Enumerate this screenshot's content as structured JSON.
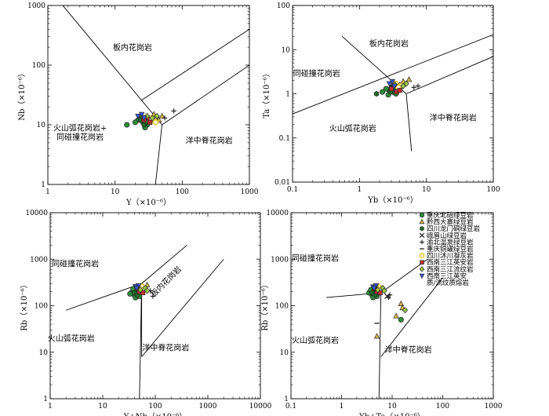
{
  "symbols": {
    "chongqing_north": {
      "shape": "circle",
      "color": "#2e8b3a"
    },
    "qianxi_dazhai": {
      "shape": "triangle",
      "color": "#d4b84a"
    },
    "sichuan_longmen": {
      "shape": "hexagon",
      "color": "#1f6e2a"
    },
    "emei": {
      "shape": "cross",
      "color": "#1a1a1a"
    },
    "yubei_wenquan": {
      "shape": "plus",
      "color": "#1a1a1a"
    },
    "chongqing_jinfo": {
      "shape": "dash",
      "color": "#1a1a1a"
    },
    "sichuan_muchuan": {
      "shape": "octagon-open",
      "color": "#e8c63a"
    },
    "southwest_ying": {
      "shape": "square",
      "color": "#c03030"
    },
    "southwest_liuwen": {
      "shape": "diamond",
      "color": "#9ec84a"
    },
    "southwest_ying_liuwen": {
      "shape": "triangle-down",
      "color": "#3b5bdb"
    }
  },
  "chart_data": [
    {
      "type": "scatter",
      "xlabel": "Y（×10⁻⁶）",
      "ylabel": "Nb（×10⁻⁶）",
      "xlog": true,
      "ylog": true,
      "xlim": [
        1,
        1000
      ],
      "ylim": [
        1,
        1000
      ],
      "xticks": [
        "1",
        "10",
        "100",
        "1000"
      ],
      "yticks": [
        "1",
        "10",
        "100",
        "1000"
      ],
      "fields": [
        "板内花岗岩",
        "火山弧花岗岩+",
        "同碰撞花岗岩",
        "洋中脊花岗岩"
      ],
      "boundaries": [
        [
          [
            1,
            2000
          ],
          [
            50,
            10
          ]
        ],
        [
          [
            50,
            10
          ],
          [
            1000,
            100
          ]
        ],
        [
          [
            25,
            26
          ],
          [
            1000,
            400
          ]
        ],
        [
          [
            50,
            10
          ],
          [
            40,
            1
          ]
        ]
      ],
      "series": [
        {
          "key": "chongqing_north",
          "points": [
            [
              26,
              11
            ],
            [
              28,
              13
            ],
            [
              22,
              12
            ],
            [
              30,
              10
            ],
            [
              25,
              13
            ],
            [
              15,
              10
            ],
            [
              35,
              12
            ],
            [
              28,
              9
            ],
            [
              20,
              11
            ],
            [
              32,
              12
            ]
          ]
        },
        {
          "key": "qianxi_dazhai",
          "points": [
            [
              40,
              13
            ],
            [
              50,
              14
            ],
            [
              45,
              12
            ],
            [
              38,
              15
            ]
          ]
        },
        {
          "key": "sichuan_longmen",
          "points": [
            [
              24,
              12
            ],
            [
              27,
              10
            ],
            [
              30,
              11
            ]
          ]
        },
        {
          "key": "emei",
          "points": [
            [
              28,
              13
            ]
          ]
        },
        {
          "key": "yubei_wenquan",
          "points": [
            [
              75,
              17
            ],
            [
              55,
              13
            ]
          ]
        },
        {
          "key": "sichuan_muchuan",
          "points": [
            [
              35,
              13
            ],
            [
              40,
              11
            ],
            [
              33,
              12
            ]
          ]
        },
        {
          "key": "southwest_ying",
          "points": [
            [
              30,
              13
            ],
            [
              33,
              11
            ],
            [
              27,
              12
            ]
          ]
        },
        {
          "key": "southwest_liuwen",
          "points": [
            [
              30,
              14
            ],
            [
              36,
              13
            ],
            [
              42,
              14
            ]
          ]
        },
        {
          "key": "southwest_ying_liuwen",
          "points": [
            [
              22,
              14
            ],
            [
              25,
              15
            ],
            [
              27,
              13
            ]
          ]
        }
      ]
    },
    {
      "type": "scatter",
      "xlabel": "Yb（×10⁻⁶）",
      "ylabel": "Ta（×10⁻⁶）",
      "xlog": true,
      "ylog": true,
      "xlim": [
        0.1,
        100
      ],
      "ylim": [
        0.01,
        100
      ],
      "xticks": [
        "0.1",
        "1",
        "10",
        "100"
      ],
      "yticks": [
        "0.01",
        "0.1",
        "1",
        "10",
        "100"
      ],
      "fields": [
        "板内花岗岩",
        "同碰撞花岗岩",
        "火山弧花岗岩",
        "洋中脊花岗岩"
      ],
      "boundaries": [
        [
          [
            0.1,
            0.35
          ],
          [
            100,
            22
          ]
        ],
        [
          [
            0.55,
            20
          ],
          [
            3,
            2
          ]
        ],
        [
          [
            3,
            2
          ],
          [
            5,
            1
          ]
        ],
        [
          [
            5,
            1
          ],
          [
            100,
            7
          ]
        ],
        [
          [
            5,
            1
          ],
          [
            6,
            0.05
          ]
        ]
      ],
      "series": [
        {
          "key": "chongqing_north",
          "points": [
            [
              2.8,
              1.2
            ],
            [
              3.2,
              1.1
            ],
            [
              2.5,
              1.3
            ],
            [
              3.5,
              1.0
            ],
            [
              2.2,
              1.1
            ],
            [
              3.0,
              1.4
            ],
            [
              2.7,
              0.95
            ],
            [
              3.8,
              1.2
            ]
          ]
        },
        {
          "key": "qianxi_dazhai",
          "points": [
            [
              4.5,
              1.9
            ],
            [
              5.5,
              2.1
            ],
            [
              4.0,
              1.6
            ]
          ]
        },
        {
          "key": "sichuan_longmen",
          "points": [
            [
              2.9,
              1.1
            ],
            [
              3.3,
              1.3
            ],
            [
              1.8,
              1.0
            ]
          ]
        },
        {
          "key": "emei",
          "points": [
            [
              3.0,
              1.5
            ]
          ]
        },
        {
          "key": "yubei_wenquan",
          "points": [
            [
              7.5,
              1.5
            ],
            [
              6.5,
              1.4
            ]
          ]
        },
        {
          "key": "sichuan_muchuan",
          "points": [
            [
              3.5,
              1.7
            ],
            [
              4.2,
              1.5
            ],
            [
              3.8,
              1.4
            ]
          ]
        },
        {
          "key": "southwest_ying",
          "points": [
            [
              3.0,
              1.3
            ],
            [
              3.6,
              1.1
            ],
            [
              4.0,
              1.2
            ]
          ]
        },
        {
          "key": "southwest_liuwen",
          "points": [
            [
              3.4,
              1.6
            ],
            [
              4.5,
              1.5
            ],
            [
              5.0,
              1.7
            ]
          ]
        },
        {
          "key": "southwest_ying_liuwen",
          "points": [
            [
              2.8,
              1.7
            ],
            [
              3.1,
              1.9
            ],
            [
              3.3,
              1.5
            ]
          ]
        }
      ]
    },
    {
      "type": "scatter",
      "xlabel": "Y+Nb（×10⁻⁶）",
      "ylabel": "Rb（×10⁻⁶）",
      "xlog": true,
      "ylog": true,
      "xlim": [
        1,
        10000
      ],
      "ylim": [
        1,
        10000
      ],
      "xticks": [
        "1",
        "10",
        "100",
        "1000",
        "10000"
      ],
      "yticks": [
        "1",
        "10",
        "100",
        "1000",
        "10000"
      ],
      "fields": [
        "同碰撞花岗岩",
        "板内花岗岩",
        "火山弧花岗岩",
        "洋中脊花岗岩"
      ],
      "boundaries": [
        [
          [
            2,
            80
          ],
          [
            55,
            300
          ]
        ],
        [
          [
            55,
            300
          ],
          [
            400,
            2000
          ]
        ],
        [
          [
            55,
            300
          ],
          [
            50,
            1
          ]
        ],
        [
          [
            55,
            300
          ],
          [
            55,
            8
          ]
        ],
        [
          [
            55,
            8
          ],
          [
            2000,
            1000
          ]
        ]
      ],
      "series": [
        {
          "key": "chongqing_north",
          "points": [
            [
              40,
              170
            ],
            [
              45,
              210
            ],
            [
              35,
              190
            ],
            [
              50,
              160
            ],
            [
              38,
              230
            ],
            [
              42,
              150
            ],
            [
              55,
              200
            ],
            [
              33,
              180
            ]
          ]
        },
        {
          "key": "qianxi_dazhai",
          "points": [
            [
              60,
              250
            ],
            [
              70,
              280
            ],
            [
              55,
              240
            ]
          ]
        },
        {
          "key": "sichuan_longmen",
          "points": [
            [
              40,
              190
            ],
            [
              45,
              170
            ],
            [
              48,
              220
            ]
          ]
        },
        {
          "key": "emei",
          "points": [
            [
              50,
              230
            ]
          ]
        },
        {
          "key": "yubei_wenquan",
          "points": [
            [
              90,
              160
            ],
            [
              80,
              210
            ]
          ]
        },
        {
          "key": "sichuan_muchuan",
          "points": [
            [
              55,
              260
            ],
            [
              62,
              230
            ],
            [
              48,
              250
            ]
          ]
        },
        {
          "key": "southwest_ying",
          "points": [
            [
              50,
              200
            ],
            [
              58,
              190
            ],
            [
              45,
              240
            ]
          ]
        },
        {
          "key": "southwest_liuwen",
          "points": [
            [
              52,
              220
            ],
            [
              65,
              240
            ],
            [
              70,
              210
            ]
          ]
        },
        {
          "key": "southwest_ying_liuwen",
          "points": [
            [
              42,
              260
            ],
            [
              48,
              270
            ],
            [
              44,
              240
            ]
          ]
        }
      ]
    },
    {
      "type": "scatter",
      "xlabel": "Yb+Ta（×10⁻⁶）",
      "ylabel": "Rb（×10⁻⁶）",
      "xlog": true,
      "ylog": true,
      "xlim": [
        0.1,
        1000
      ],
      "ylim": [
        1,
        10000
      ],
      "xticks": [
        "0.1",
        "1",
        "10",
        "100",
        "1000"
      ],
      "yticks": [
        "1",
        "10",
        "100",
        "1000",
        "10000"
      ],
      "fields": [
        "同碰撞花岗岩",
        "火山弧花岗岩",
        "洋中脊花岗岩"
      ],
      "boundaries": [
        [
          [
            0.5,
            150
          ],
          [
            6,
            190
          ]
        ],
        [
          [
            6,
            190
          ],
          [
            50,
            1000
          ]
        ],
        [
          [
            6,
            190
          ],
          [
            5.5,
            1
          ]
        ],
        [
          [
            6,
            8
          ],
          [
            100,
            400
          ]
        ]
      ],
      "legend": [
        {
          "key": "chongqing_north",
          "label": "重庆北碚绿豆岩"
        },
        {
          "key": "qianxi_dazhai",
          "label": "黔西大寨绿豆岩"
        },
        {
          "key": "sichuan_longmen",
          "label": "四川龙门硐绿豆岩"
        },
        {
          "key": "emei",
          "label": "峨眉山绿豆岩"
        },
        {
          "key": "yubei_wenquan",
          "label": "渝北温泉绿豆岩"
        },
        {
          "key": "chongqing_jinfo",
          "label": "重庆铜罐绿豆岩"
        },
        {
          "key": "sichuan_muchuan",
          "label": "四川沐川凝灰岩"
        },
        {
          "key": "southwest_ying",
          "label": "西南三江英安岩"
        },
        {
          "key": "southwest_liuwen",
          "label": "西南三江流纹岩"
        },
        {
          "key": "southwest_ying_liuwen",
          "label": "西南三江英安"
        },
        {
          "key": "",
          "label": "质/流纹质熔岩"
        }
      ],
      "series": [
        {
          "key": "chongqing_north",
          "points": [
            [
              4,
              170
            ],
            [
              4.5,
              200
            ],
            [
              3.5,
              190
            ],
            [
              5,
              160
            ],
            [
              3.8,
              220
            ],
            [
              4.2,
              150
            ],
            [
              5.5,
              190
            ],
            [
              15,
              50
            ]
          ]
        },
        {
          "key": "qianxi_dazhai",
          "points": [
            [
              15,
              110
            ],
            [
              16,
              90
            ],
            [
              12,
              60
            ],
            [
              5,
              22
            ]
          ]
        },
        {
          "key": "sichuan_longmen",
          "points": [
            [
              4,
              190
            ],
            [
              4.6,
              170
            ],
            [
              5.2,
              215
            ]
          ]
        },
        {
          "key": "emei",
          "points": [
            [
              8,
              160
            ]
          ]
        },
        {
          "key": "yubei_wenquan",
          "points": [
            [
              9,
              170
            ],
            [
              8.5,
              150
            ]
          ]
        },
        {
          "key": "chongqing_jinfo",
          "points": [
            [
              5,
              42
            ]
          ]
        },
        {
          "key": "sichuan_muchuan",
          "points": [
            [
              5.5,
              250
            ],
            [
              6.2,
              230
            ],
            [
              4.8,
              260
            ]
          ]
        },
        {
          "key": "southwest_ying",
          "points": [
            [
              5,
              200
            ],
            [
              5.8,
              190
            ],
            [
              4.5,
              235
            ]
          ]
        },
        {
          "key": "southwest_liuwen",
          "points": [
            [
              5.2,
              220
            ],
            [
              6.5,
              240
            ],
            [
              7,
              210
            ],
            [
              18,
              80
            ]
          ]
        },
        {
          "key": "southwest_ying_liuwen",
          "points": [
            [
              4.2,
              255
            ],
            [
              4.8,
              270
            ],
            [
              4.4,
              240
            ]
          ]
        }
      ]
    }
  ]
}
